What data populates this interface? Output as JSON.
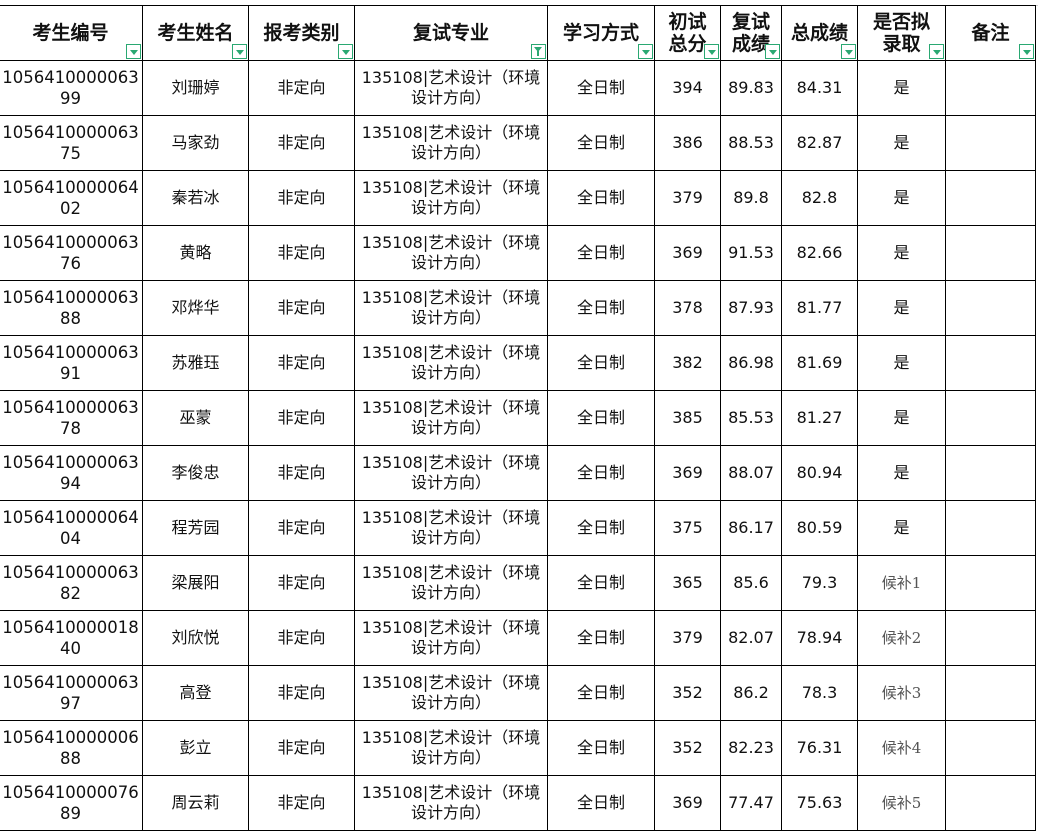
{
  "accent_color": "#2aa872",
  "columns": [
    {
      "label": "考生编号",
      "filter": "dropdown"
    },
    {
      "label": "考生姓名",
      "filter": "dropdown"
    },
    {
      "label": "报考类别",
      "filter": "dropdown"
    },
    {
      "label": "复试专业",
      "filter": "active-filter"
    },
    {
      "label": "学习方式",
      "filter": "dropdown"
    },
    {
      "label": "初试总分",
      "filter": "dropdown"
    },
    {
      "label": "复试成绩",
      "filter": "dropdown"
    },
    {
      "label": "总成绩",
      "filter": "dropdown"
    },
    {
      "label": "是否拟录取",
      "filter": "dropdown"
    },
    {
      "label": "备注",
      "filter": "dropdown"
    }
  ],
  "rows": [
    [
      "105641000006399",
      "刘珊婷",
      "非定向",
      "135108|艺术设计（环境设计方向）",
      "全日制",
      "394",
      "89.83",
      "84.31",
      "是",
      ""
    ],
    [
      "105641000006375",
      "马家劲",
      "非定向",
      "135108|艺术设计（环境设计方向）",
      "全日制",
      "386",
      "88.53",
      "82.87",
      "是",
      ""
    ],
    [
      "105641000006402",
      "秦若冰",
      "非定向",
      "135108|艺术设计（环境设计方向）",
      "全日制",
      "379",
      "89.8",
      "82.8",
      "是",
      ""
    ],
    [
      "105641000006376",
      "黄略",
      "非定向",
      "135108|艺术设计（环境设计方向）",
      "全日制",
      "369",
      "91.53",
      "82.66",
      "是",
      ""
    ],
    [
      "105641000006388",
      "邓烨华",
      "非定向",
      "135108|艺术设计（环境设计方向）",
      "全日制",
      "378",
      "87.93",
      "81.77",
      "是",
      ""
    ],
    [
      "105641000006391",
      "苏雅珏",
      "非定向",
      "135108|艺术设计（环境设计方向）",
      "全日制",
      "382",
      "86.98",
      "81.69",
      "是",
      ""
    ],
    [
      "105641000006378",
      "巫蒙",
      "非定向",
      "135108|艺术设计（环境设计方向）",
      "全日制",
      "385",
      "85.53",
      "81.27",
      "是",
      ""
    ],
    [
      "105641000006394",
      "李俊忠",
      "非定向",
      "135108|艺术设计（环境设计方向）",
      "全日制",
      "369",
      "88.07",
      "80.94",
      "是",
      ""
    ],
    [
      "105641000006404",
      "程芳园",
      "非定向",
      "135108|艺术设计（环境设计方向）",
      "全日制",
      "375",
      "86.17",
      "80.59",
      "是",
      ""
    ],
    [
      "105641000006382",
      "梁展阳",
      "非定向",
      "135108|艺术设计（环境设计方向）",
      "全日制",
      "365",
      "85.6",
      "79.3",
      "候补1",
      ""
    ],
    [
      "105641000001840",
      "刘欣悦",
      "非定向",
      "135108|艺术设计（环境设计方向）",
      "全日制",
      "379",
      "82.07",
      "78.94",
      "候补2",
      ""
    ],
    [
      "105641000006397",
      "高登",
      "非定向",
      "135108|艺术设计（环境设计方向）",
      "全日制",
      "352",
      "86.2",
      "78.3",
      "候补3",
      ""
    ],
    [
      "105641000000688",
      "彭立",
      "非定向",
      "135108|艺术设计（环境设计方向）",
      "全日制",
      "352",
      "82.23",
      "76.31",
      "候补4",
      ""
    ],
    [
      "105641000007689",
      "周云莉",
      "非定向",
      "135108|艺术设计（环境设计方向）",
      "全日制",
      "369",
      "77.47",
      "75.63",
      "候补5",
      ""
    ]
  ]
}
